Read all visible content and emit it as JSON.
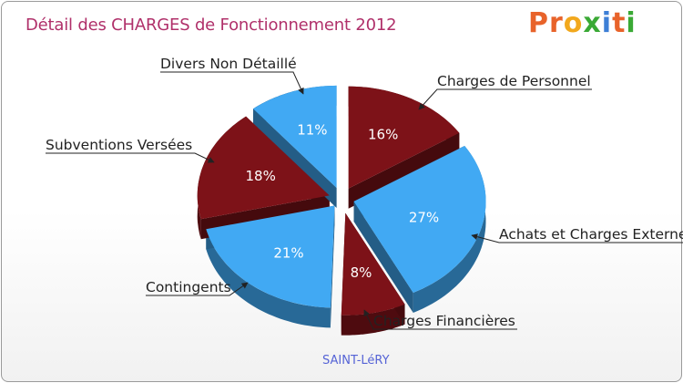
{
  "chart_data": {
    "type": "pie",
    "title": "Détail des CHARGES de Fonctionnement 2012",
    "subtitle": "SAINT-LéRY",
    "slices": [
      {
        "label": "Charges de Personnel",
        "value": 16,
        "display": "16%",
        "color": "#7d1218"
      },
      {
        "label": "Achats et Charges Externes",
        "value": 27,
        "display": "27%",
        "color": "#41a9f3"
      },
      {
        "label": "Charges Financières",
        "value": 8,
        "display": "8%",
        "color": "#7d1218"
      },
      {
        "label": "Contingents",
        "value": 21,
        "display": "21%",
        "color": "#41a9f3"
      },
      {
        "label": "Subventions Versées",
        "value": 18,
        "display": "18%",
        "color": "#7d1218"
      },
      {
        "label": "Divers Non Détaillé",
        "value": 11,
        "display": "11%",
        "color": "#41a9f3"
      }
    ]
  },
  "logo": {
    "text": "Proxiti",
    "letters": [
      "P",
      "r",
      "o",
      "x",
      "i",
      "t",
      "i"
    ],
    "colors": [
      "#e8632a",
      "#e8632a",
      "#f2a81d",
      "#3aa935",
      "#3d7fd6",
      "#e8632a",
      "#3aa935"
    ]
  },
  "colors": {
    "title": "#b0306a",
    "dark_side": "#4f0a0e",
    "blue_side": "#2a86c9",
    "footer": "#5563d6"
  }
}
